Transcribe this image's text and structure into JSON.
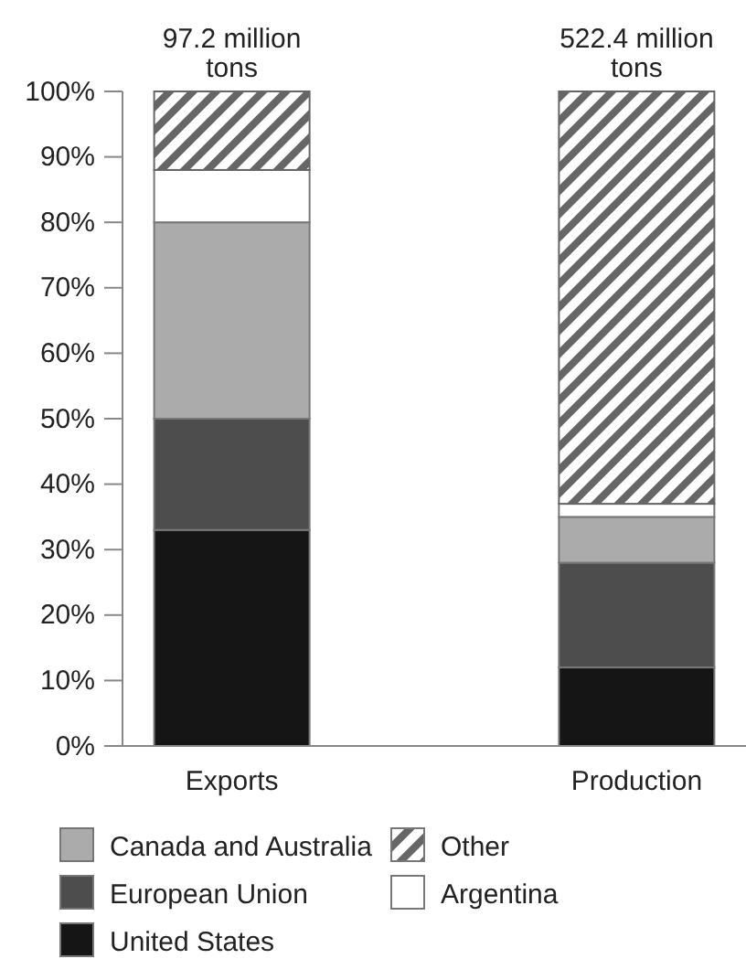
{
  "chart_data": {
    "type": "bar",
    "stacked": true,
    "categories": [
      "Exports",
      "Production"
    ],
    "series": [
      {
        "name": "United States",
        "color": "#151515",
        "values": [
          33,
          12
        ]
      },
      {
        "name": "European Union",
        "color": "#4d4d4d",
        "values": [
          17,
          16
        ]
      },
      {
        "name": "Canada and Australia",
        "color": "#ababab",
        "values": [
          30,
          7
        ]
      },
      {
        "name": "Argentina",
        "color": "#ffffff",
        "values": [
          8,
          2
        ]
      },
      {
        "name": "Other",
        "color": "#666666",
        "values": [
          12,
          63
        ]
      }
    ],
    "annotations": [
      {
        "text": "97.2 million tons",
        "x": "Exports",
        "y": 100
      },
      {
        "text": "522.4 million tons",
        "x": "Production",
        "y": 100
      }
    ],
    "ylim": [
      0,
      100
    ],
    "yticks": [
      {
        "value": 0,
        "label": "0%"
      },
      {
        "value": 10,
        "label": "10%"
      },
      {
        "value": 20,
        "label": "20%"
      },
      {
        "value": 30,
        "label": "30%"
      },
      {
        "value": 40,
        "label": "40%"
      },
      {
        "value": 50,
        "label": "50%"
      },
      {
        "value": 60,
        "label": "60%"
      },
      {
        "value": 70,
        "label": "70%"
      },
      {
        "value": 80,
        "label": "80%"
      },
      {
        "value": 90,
        "label": "90%"
      },
      {
        "value": 100,
        "label": "100%"
      }
    ],
    "grid": false,
    "legend": "bottom"
  }
}
